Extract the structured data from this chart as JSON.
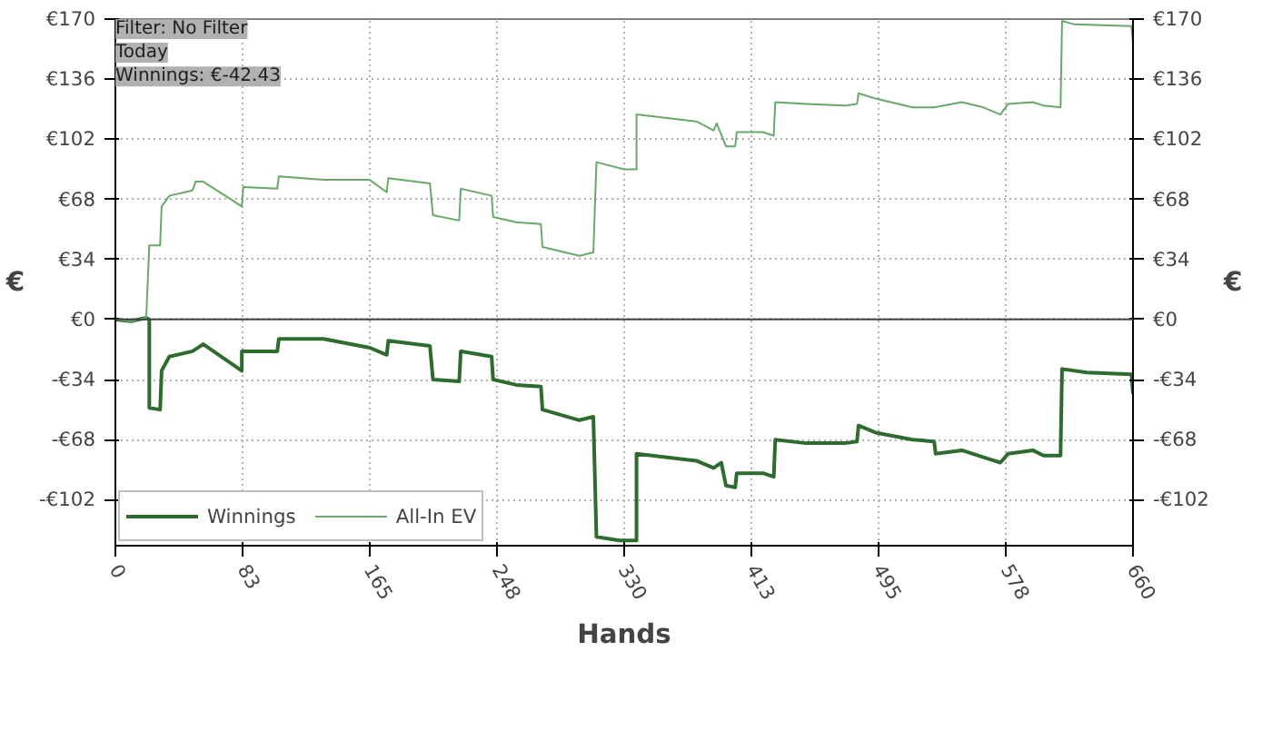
{
  "chart_data": {
    "type": "line",
    "xlabel": "Hands",
    "ylabel": "€",
    "y2label": "€",
    "annotations": [
      "Filter: No Filter",
      "Today",
      "Winnings: €-42.43"
    ],
    "xlim": [
      0,
      660
    ],
    "xticks": [
      0,
      83,
      165,
      248,
      330,
      413,
      495,
      578,
      660
    ],
    "ylim": [
      -128,
      170
    ],
    "yticks": [
      {
        "value": -102,
        "label": "-€102"
      },
      {
        "value": -68,
        "label": "-€68"
      },
      {
        "value": -34,
        "label": "-€34"
      },
      {
        "value": 0,
        "label": "€0"
      },
      {
        "value": 34,
        "label": "€34"
      },
      {
        "value": 68,
        "label": "€68"
      },
      {
        "value": 102,
        "label": "€102"
      },
      {
        "value": 136,
        "label": "€136"
      },
      {
        "value": 170,
        "label": "€170"
      }
    ],
    "y2lim": [
      -128,
      170
    ],
    "y2ticks": [
      {
        "value": -102,
        "label": "-€102"
      },
      {
        "value": -68,
        "label": "-€68"
      },
      {
        "value": -34,
        "label": "-€34"
      },
      {
        "value": 0,
        "label": "€0"
      },
      {
        "value": 34,
        "label": "€34"
      },
      {
        "value": 68,
        "label": "€68"
      },
      {
        "value": 102,
        "label": "€102"
      },
      {
        "value": 136,
        "label": "€136"
      },
      {
        "value": 170,
        "label": "€170"
      }
    ],
    "grid": true,
    "legend": "bottom left",
    "marker": "none",
    "line_style": "solid",
    "ref_lines": [
      {
        "axis": "y",
        "value": 0,
        "color": "#404040"
      }
    ],
    "series": [
      {
        "name": "Winnings",
        "color": "#2e6b2e",
        "x": [
          0,
          10,
          20,
          22,
          22,
          29,
          30,
          35,
          50,
          57,
          82,
          82,
          105,
          106,
          135,
          165,
          176,
          177,
          204,
          206,
          223,
          224,
          244,
          245,
          260,
          276,
          277,
          301,
          310,
          312,
          327,
          338,
          338,
          377,
          388,
          393,
          396,
          402,
          403,
          420,
          427,
          428,
          448,
          473,
          481,
          482,
          493,
          517,
          531,
          532,
          549,
          563,
          574,
          579,
          595,
          602,
          613,
          614,
          630,
          659,
          660
        ],
        "values": [
          0,
          -1,
          1,
          0,
          -50,
          -51,
          -29,
          -21,
          -18,
          -14,
          -29,
          -18,
          -18,
          -11,
          -11,
          -16,
          -20,
          -12,
          -15,
          -34,
          -35,
          -18,
          -21,
          -34,
          -37,
          -38,
          -51,
          -57,
          -55,
          -123,
          -125,
          -125,
          -76,
          -80,
          -84,
          -81,
          -94,
          -95,
          -87,
          -87,
          -89,
          -68,
          -70,
          -70,
          -69,
          -60,
          -64,
          -68,
          -69,
          -76,
          -74,
          -78,
          -81,
          -76,
          -74,
          -77,
          -77,
          -28,
          -30,
          -31,
          -42
        ]
      },
      {
        "name": "All-In EV",
        "color": "#6aa86a",
        "x": [
          0,
          10,
          20,
          22,
          29,
          30,
          35,
          50,
          52,
          57,
          82,
          83,
          105,
          106,
          135,
          165,
          176,
          177,
          204,
          206,
          223,
          224,
          244,
          245,
          260,
          276,
          277,
          301,
          310,
          312,
          330,
          338,
          338,
          377,
          388,
          390,
          396,
          402,
          403,
          420,
          427,
          428,
          448,
          473,
          481,
          482,
          493,
          517,
          531,
          549,
          563,
          574,
          579,
          595,
          602,
          613,
          614,
          622,
          659,
          660
        ],
        "values": [
          0,
          -1,
          1,
          42,
          42,
          64,
          70,
          73,
          78,
          78,
          64,
          75,
          74,
          81,
          79,
          79,
          72,
          80,
          77,
          59,
          56,
          74,
          70,
          58,
          55,
          54,
          41,
          36,
          38,
          89,
          85,
          85,
          116,
          112,
          107,
          111,
          98,
          98,
          106,
          106,
          104,
          123,
          122,
          121,
          122,
          128,
          125,
          120,
          120,
          123,
          120,
          116,
          122,
          123,
          121,
          120,
          169,
          167,
          166,
          156
        ]
      }
    ]
  }
}
